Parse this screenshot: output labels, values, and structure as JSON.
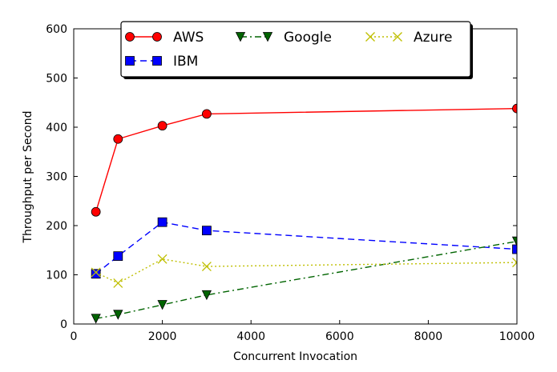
{
  "chart_data": {
    "type": "line",
    "title": "",
    "xlabel": "Concurrent Invocation",
    "ylabel": "Throughput per Second",
    "xlim": [
      0,
      10000
    ],
    "ylim": [
      0,
      600
    ],
    "xticks": [
      0,
      2000,
      4000,
      6000,
      8000,
      10000
    ],
    "yticks": [
      0,
      100,
      200,
      300,
      400,
      500,
      600
    ],
    "xtick_labels": [
      "0",
      "2000",
      "4000",
      "6000",
      "8000",
      "10000"
    ],
    "ytick_labels": [
      "0",
      "100",
      "200",
      "300",
      "400",
      "500",
      "600"
    ],
    "grid": false,
    "legend_position": "top-center",
    "series": [
      {
        "name": "AWS",
        "color": "#ff0000",
        "marker": "circle",
        "line_style": "solid",
        "x": [
          500,
          1000,
          2000,
          3000,
          10000
        ],
        "values": [
          228,
          376,
          403,
          427,
          438
        ]
      },
      {
        "name": "IBM",
        "color": "#0000ff",
        "marker": "square",
        "line_style": "dashed",
        "x": [
          500,
          1000,
          2000,
          3000,
          10000
        ],
        "values": [
          102,
          138,
          207,
          190,
          152
        ]
      },
      {
        "name": "Google",
        "color": "#006400",
        "marker": "triangle-down",
        "line_style": "dashdot",
        "x": [
          500,
          1000,
          2000,
          3000,
          10000
        ],
        "values": [
          11,
          19,
          39,
          59,
          168
        ]
      },
      {
        "name": "Azure",
        "color": "#bfbf00",
        "marker": "x",
        "line_style": "dotted",
        "x": [
          500,
          1000,
          2000,
          3000,
          10000
        ],
        "values": [
          105,
          83,
          132,
          117,
          125
        ]
      }
    ]
  }
}
